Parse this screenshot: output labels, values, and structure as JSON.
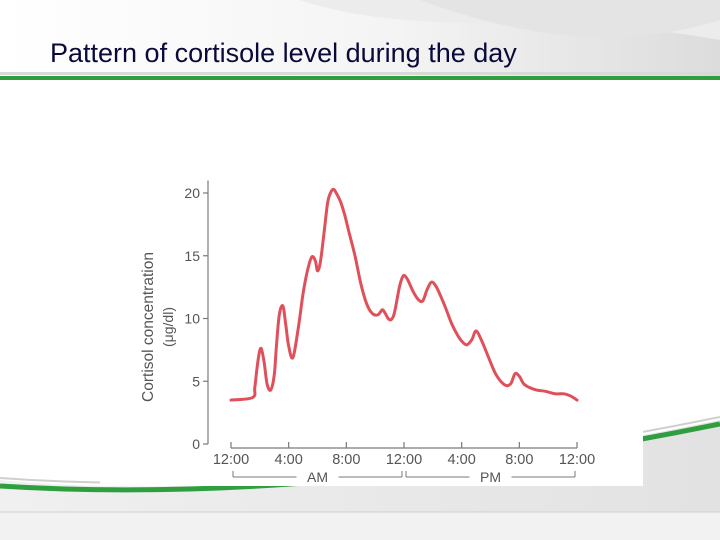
{
  "slide": {
    "title": "Pattern of cortisole level during the day",
    "colors": {
      "accent_green": "#2e9e3e",
      "title_text": "#0a0a3a",
      "curve": "#e0505a"
    }
  },
  "chart_data": {
    "type": "line",
    "title": "",
    "ylabel": "Cortisol concentration",
    "ylabel_unit": "(μg/dl)",
    "xlabel": "",
    "x_unit": "hours since midnight",
    "ylim": [
      0,
      21
    ],
    "xlim": [
      0,
      24
    ],
    "yticks": [
      0,
      5,
      10,
      15,
      20
    ],
    "xticks": [
      {
        "value": 0,
        "label": "12:00"
      },
      {
        "value": 4,
        "label": "4:00"
      },
      {
        "value": 8,
        "label": "8:00"
      },
      {
        "value": 12,
        "label": "12:00"
      },
      {
        "value": 16,
        "label": "4:00"
      },
      {
        "value": 20,
        "label": "8:00"
      },
      {
        "value": 24,
        "label": "12:00"
      }
    ],
    "periods": [
      {
        "label": "AM",
        "from": 0,
        "to": 12
      },
      {
        "label": "PM",
        "from": 12,
        "to": 24
      }
    ],
    "grid": false,
    "series": [
      {
        "color": "#e0505a",
        "x": [
          0,
          1.5,
          1.65,
          1.8,
          1.95,
          2.1,
          2.3,
          2.5,
          2.75,
          3.0,
          3.15,
          3.35,
          3.6,
          3.8,
          4.0,
          4.3,
          4.7,
          5.0,
          5.3,
          5.6,
          5.85,
          6.0,
          6.2,
          6.45,
          6.7,
          6.9,
          7.1,
          7.3,
          7.6,
          7.9,
          8.2,
          8.6,
          9.0,
          9.4,
          9.8,
          10.2,
          10.5,
          10.7,
          10.9,
          11.1,
          11.3,
          11.5,
          11.7,
          11.95,
          12.2,
          12.45,
          12.7,
          13.0,
          13.3,
          13.6,
          13.9,
          14.2,
          14.5,
          14.9,
          15.3,
          15.7,
          16.0,
          16.35,
          16.7,
          17.0,
          17.4,
          17.9,
          18.4,
          19.0,
          19.4,
          19.7,
          20.0,
          20.3,
          20.7,
          21.2,
          21.8,
          22.5,
          23.1,
          23.6,
          24.0
        ],
        "y": [
          3.5,
          3.7,
          4.5,
          6.0,
          7.2,
          7.6,
          6.5,
          4.8,
          4.3,
          5.5,
          7.8,
          10.3,
          11.0,
          9.5,
          7.8,
          6.9,
          9.5,
          12.0,
          13.8,
          14.9,
          14.6,
          13.8,
          14.5,
          16.8,
          19.2,
          20.0,
          20.3,
          20.0,
          19.3,
          18.2,
          16.8,
          15.0,
          12.8,
          11.2,
          10.4,
          10.3,
          10.7,
          10.4,
          10.0,
          9.9,
          10.3,
          11.4,
          12.6,
          13.4,
          13.2,
          12.6,
          12.0,
          11.5,
          11.4,
          12.3,
          12.9,
          12.6,
          11.9,
          10.8,
          9.6,
          8.7,
          8.2,
          7.9,
          8.3,
          9.0,
          8.2,
          6.8,
          5.5,
          4.7,
          4.8,
          5.6,
          5.4,
          4.8,
          4.5,
          4.3,
          4.2,
          4.0,
          4.0,
          3.8,
          3.5
        ]
      }
    ]
  }
}
